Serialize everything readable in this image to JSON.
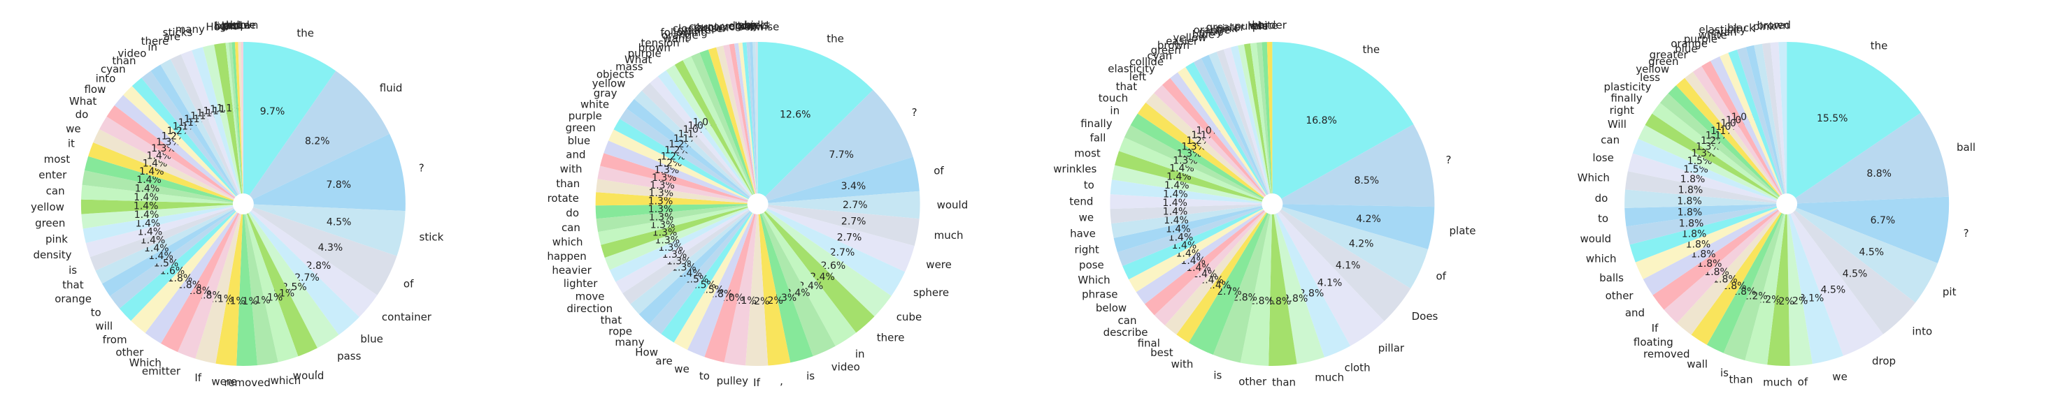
{
  "chart_data": [
    {
      "type": "pie",
      "start_angle_deg": 90,
      "counterclock": false,
      "show_pct_min": 1.0,
      "palette": [
        "#87f1f3",
        "#b9d9f0",
        "#a5d8f5",
        "#c6e6f3",
        "#dadfea",
        "#e4e6f7",
        "#caedfb",
        "#cdf7d0",
        "#a4e06c",
        "#c3f6c1",
        "#ade9ad",
        "#86e89a",
        "#f9e45c",
        "#efe5cf",
        "#f4d0dd",
        "#fdb2b8",
        "#d3d8f5",
        "#fbf4c4"
      ],
      "labels": [
        "the",
        "fluid",
        "?",
        "stick",
        "of",
        "container",
        "blue",
        "pass",
        ",",
        "would",
        "which",
        "removed",
        "were",
        "If",
        "emitter",
        "Which",
        "other",
        "from",
        "will",
        "to",
        "orange",
        "that",
        "is",
        "density",
        "pink",
        "green",
        "yellow",
        "can",
        "enter",
        "most",
        "it",
        "we",
        "do",
        "What",
        "flow",
        "into",
        "cyan",
        "than",
        "video",
        "in",
        "there",
        "are",
        "sticks",
        "many",
        "How",
        "light",
        "black",
        "red",
        "white",
        "purple",
        "brown"
      ],
      "values": [
        9.4,
        8.0,
        7.6,
        4.4,
        4.2,
        2.7,
        2.6,
        2.4,
        2.0,
        2.0,
        2.0,
        2.0,
        2.0,
        2.0,
        1.8,
        1.8,
        1.8,
        1.8,
        1.6,
        1.5,
        1.4,
        1.4,
        1.4,
        1.4,
        1.4,
        1.4,
        1.4,
        1.4,
        1.4,
        1.4,
        1.4,
        1.4,
        1.4,
        1.3,
        1.3,
        1.2,
        1.2,
        1.1,
        1.1,
        1.1,
        1.1,
        1.1,
        1.1,
        1.1,
        1.1,
        0.3,
        0.3,
        0.3,
        0.3,
        0.3,
        0.2
      ]
    },
    {
      "type": "pie",
      "start_angle_deg": 90,
      "counterclock": false,
      "show_pct_min": 1.0,
      "palette": [
        "#87f1f3",
        "#b9d9f0",
        "#a5d8f5",
        "#c6e6f3",
        "#dadfea",
        "#e4e6f7",
        "#caedfb",
        "#cdf7d0",
        "#a4e06c",
        "#c3f6c1",
        "#ade9ad",
        "#86e89a",
        "#f9e45c",
        "#efe5cf",
        "#f4d0dd",
        "#fdb2b8",
        "#d3d8f5",
        "#fbf4c4"
      ],
      "labels": [
        "the",
        "?",
        "of",
        "would",
        "much",
        "were",
        "sphere",
        "cube",
        "there",
        "in",
        "video",
        "is",
        ",",
        "If",
        "pulley",
        "to",
        "we",
        "are",
        "How",
        "many",
        "rope",
        "that",
        "direction",
        "move",
        "lighter",
        "heavier",
        "happen",
        "which",
        "can",
        "do",
        "rotate",
        "than",
        "with",
        "and",
        "blue",
        "green",
        "purple",
        "white",
        "gray",
        "yellow",
        "objects",
        "mass",
        "What",
        "purple",
        "brown",
        "tension",
        "want",
        "orange",
        "following",
        "greater",
        "clockwise",
        "brown",
        "counterclockwise",
        "yellow",
        "down",
        "gray",
        "up",
        "object",
        "balls"
      ],
      "values": [
        12.5,
        7.7,
        3.4,
        2.7,
        2.7,
        2.7,
        2.7,
        2.6,
        2.4,
        2.4,
        2.4,
        2.3,
        2.2,
        2.2,
        2.1,
        2.0,
        1.8,
        1.5,
        1.5,
        1.5,
        1.4,
        1.3,
        1.3,
        1.3,
        1.3,
        1.3,
        1.3,
        1.3,
        1.3,
        1.3,
        1.3,
        1.3,
        1.3,
        1.3,
        1.3,
        1.2,
        1.2,
        1.2,
        1.2,
        1.1,
        1.1,
        1.0,
        1.0,
        1.0,
        0.9,
        0.9,
        0.9,
        0.9,
        0.8,
        0.7,
        0.6,
        0.5,
        0.4,
        0.4,
        0.4,
        0.3,
        0.3,
        0.3,
        0.2
      ]
    },
    {
      "type": "pie",
      "start_angle_deg": 90,
      "counterclock": false,
      "show_pct_min": 1.0,
      "palette": [
        "#87f1f3",
        "#b9d9f0",
        "#a5d8f5",
        "#c6e6f3",
        "#dadfea",
        "#e4e6f7",
        "#caedfb",
        "#cdf7d0",
        "#a4e06c",
        "#c3f6c1",
        "#ade9ad",
        "#86e89a",
        "#f9e45c",
        "#efe5cf",
        "#f4d0dd",
        "#fdb2b8",
        "#d3d8f5",
        "#fbf4c4"
      ],
      "labels": [
        "the",
        "?",
        "plate",
        "of",
        "Does",
        "pillar",
        "cloth",
        "much",
        "than",
        "other",
        "is",
        "with",
        "best",
        "final",
        "describe",
        "can",
        "below",
        "phrase",
        "Which",
        "pose",
        "right",
        "have",
        "we",
        "tend",
        "to",
        "wrinkles",
        "most",
        "fall",
        "finally",
        "in",
        "touch",
        "that",
        "left",
        "elasticity",
        "collide",
        "cyan",
        "green",
        "brown",
        "easier",
        "yellow",
        "blue",
        "gray",
        "orange",
        "pink",
        "greater",
        "purple",
        "less",
        "white",
        "harder"
      ],
      "values": [
        16.3,
        8.2,
        4.1,
        4.1,
        4.0,
        4.0,
        2.7,
        2.7,
        2.7,
        2.7,
        2.7,
        2.6,
        1.4,
        1.4,
        1.4,
        1.4,
        1.4,
        1.4,
        1.4,
        1.4,
        1.4,
        1.4,
        1.4,
        1.4,
        1.4,
        1.4,
        1.4,
        1.4,
        1.3,
        1.3,
        1.3,
        1.2,
        1.1,
        1.0,
        0.9,
        0.9,
        0.9,
        0.8,
        0.8,
        0.8,
        0.7,
        0.7,
        0.7,
        0.6,
        0.6,
        0.6,
        0.5,
        0.5,
        0.5
      ]
    },
    {
      "type": "pie",
      "start_angle_deg": 90,
      "counterclock": false,
      "show_pct_min": 1.0,
      "palette": [
        "#87f1f3",
        "#b9d9f0",
        "#a5d8f5",
        "#c6e6f3",
        "#dadfea",
        "#e4e6f7",
        "#caedfb",
        "#cdf7d0",
        "#a4e06c",
        "#c3f6c1",
        "#ade9ad",
        "#86e89a",
        "#f9e45c",
        "#efe5cf",
        "#f4d0dd",
        "#fdb2b8",
        "#d3d8f5",
        "#fbf4c4"
      ],
      "labels": [
        "the",
        "ball",
        "?",
        "pit",
        "into",
        "drop",
        "we",
        "of",
        "much",
        "than",
        "is",
        "wall",
        "removed",
        "floating",
        "If",
        "and",
        "other",
        "balls",
        "which",
        "would",
        "to",
        "do",
        "Which",
        "lose",
        "can",
        "Will",
        "right",
        "finally",
        "plasticity",
        "less",
        "yellow",
        "green",
        "greater",
        "blue",
        "orange",
        "purple",
        "white",
        "cyan",
        "elasticity",
        "black",
        "pink",
        "brown",
        "red"
      ],
      "values": [
        15.3,
        8.7,
        6.6,
        4.4,
        4.4,
        4.4,
        3.1,
        2.2,
        2.2,
        2.2,
        2.2,
        1.8,
        1.8,
        1.8,
        1.8,
        1.8,
        1.8,
        1.8,
        1.8,
        1.8,
        1.8,
        1.8,
        1.8,
        1.8,
        1.5,
        1.5,
        1.3,
        1.3,
        1.2,
        1.1,
        1.1,
        1.0,
        1.0,
        1.0,
        1.0,
        0.9,
        0.9,
        0.9,
        0.8,
        0.8,
        0.8,
        0.8,
        0.8
      ]
    }
  ]
}
